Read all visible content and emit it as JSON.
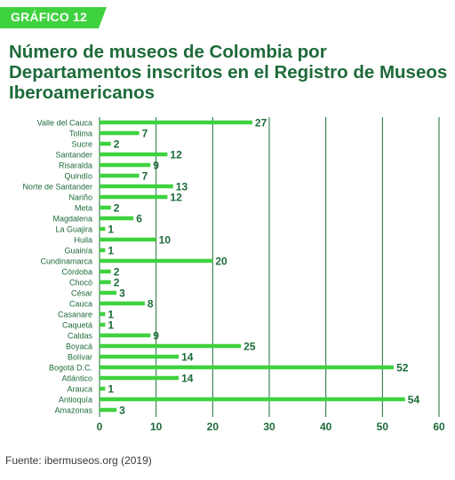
{
  "badge": {
    "label": "GRÁFICO 12"
  },
  "title": "Número de museos de Colombia por Departamentos inscritos en el Registro de Museos Iberoamericanos",
  "source": "Fuente: ibermuseos.org (2019)",
  "colors": {
    "bar": "#3ed23e",
    "badge": "#3ed23e",
    "title": "#1e6b3a",
    "text": "#1e6b3a",
    "grid": "#1e6b3a"
  },
  "chart_data": {
    "type": "bar",
    "orientation": "horizontal",
    "categories": [
      "Valle del Cauca",
      "Tolima",
      "Sucre",
      "Santander",
      "Risaralda",
      "Quindío",
      "Norte de Santander",
      "Nariño",
      "Meta",
      "Magdalena",
      "La Guajira",
      "Huila",
      "Guainía",
      "Cundinamarca",
      "Córdoba",
      "Chocó",
      "César",
      "Cauca",
      "Casanare",
      "Caquetá",
      "Caldas",
      "Boyacá",
      "Bolívar",
      "Bogotá D.C.",
      "Atlántico",
      "Arauca",
      "Antioquía",
      "Amazonas"
    ],
    "values": [
      27,
      7,
      2,
      12,
      9,
      7,
      13,
      12,
      2,
      6,
      1,
      10,
      1,
      20,
      2,
      2,
      3,
      8,
      1,
      1,
      9,
      25,
      14,
      52,
      14,
      1,
      54,
      3
    ],
    "xlim": [
      0,
      60
    ],
    "xticks": [
      0,
      10,
      20,
      30,
      40,
      50,
      60
    ],
    "grid": "vertical",
    "data_labels": true
  }
}
